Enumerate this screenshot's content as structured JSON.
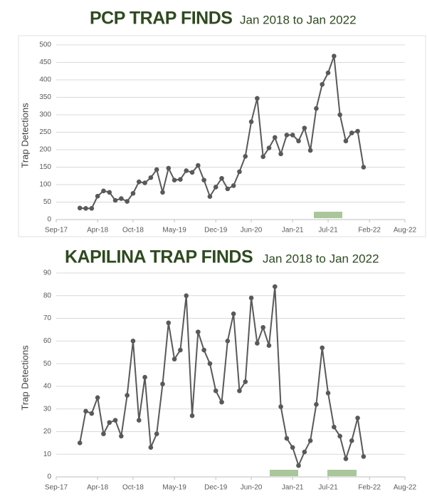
{
  "chart_data": [
    {
      "type": "line",
      "title": "PCP TRAP FINDS",
      "subtitle": "Jan 2018 to Jan 2022",
      "y_label": "Trap Detections",
      "x": [
        "Jan-18",
        "Feb-18",
        "Mar-18",
        "Apr-18",
        "May-18",
        "Jun-18",
        "Jul-18",
        "Aug-18",
        "Sep-18",
        "Oct-18",
        "Nov-18",
        "Dec-18",
        "Jan-19",
        "Feb-19",
        "Mar-19",
        "Apr-19",
        "May-19",
        "Jun-19",
        "Jul-19",
        "Aug-19",
        "Sep-19",
        "Oct-19",
        "Nov-19",
        "Dec-19",
        "Jan-20",
        "Feb-20",
        "Mar-20",
        "Apr-20",
        "May-20",
        "Jun-20",
        "Jul-20",
        "Aug-20",
        "Sep-20",
        "Oct-20",
        "Nov-20",
        "Dec-20",
        "Jan-21",
        "Feb-21",
        "Mar-21",
        "Apr-21",
        "May-21",
        "Jun-21",
        "Jul-21",
        "Aug-21",
        "Sep-21",
        "Oct-21",
        "Nov-21",
        "Dec-21",
        "Jan-22"
      ],
      "series": [
        {
          "name": "Trap Detections",
          "color": "#595959",
          "values": [
            33,
            32,
            32,
            67,
            82,
            78,
            55,
            60,
            52,
            75,
            108,
            105,
            120,
            143,
            78,
            147,
            113,
            115,
            140,
            135,
            155,
            113,
            66,
            93,
            118,
            88,
            97,
            137,
            181,
            280,
            347,
            180,
            205,
            235,
            188,
            242,
            242,
            225,
            262,
            198,
            318,
            387,
            420,
            468,
            300,
            225,
            248,
            253,
            150
          ]
        }
      ],
      "xlim": [
        "Sep-17",
        "Aug-22"
      ],
      "xticks": [
        "Sep-17",
        "Apr-18",
        "Oct-18",
        "May-19",
        "Dec-19",
        "Jun-20",
        "Jan-21",
        "Jul-21",
        "Feb-22",
        "Aug-22"
      ],
      "ylim": [
        0,
        500
      ],
      "yticks": [
        0,
        50,
        100,
        150,
        200,
        250,
        300,
        350,
        400,
        450,
        500
      ],
      "grid": true
    },
    {
      "type": "line",
      "title": "KAPILINA TRAP FINDS",
      "subtitle": "Jan 2018 to Jan 2022",
      "y_label": "Trap Detections",
      "x": [
        "Jan-18",
        "Feb-18",
        "Mar-18",
        "Apr-18",
        "May-18",
        "Jun-18",
        "Jul-18",
        "Aug-18",
        "Sep-18",
        "Oct-18",
        "Nov-18",
        "Dec-18",
        "Jan-19",
        "Feb-19",
        "Mar-19",
        "Apr-19",
        "May-19",
        "Jun-19",
        "Jul-19",
        "Aug-19",
        "Sep-19",
        "Oct-19",
        "Nov-19",
        "Dec-19",
        "Jan-20",
        "Feb-20",
        "Mar-20",
        "Apr-20",
        "May-20",
        "Jun-20",
        "Jul-20",
        "Aug-20",
        "Sep-20",
        "Oct-20",
        "Nov-20",
        "Dec-20",
        "Jan-21",
        "Feb-21",
        "Mar-21",
        "Apr-21",
        "May-21",
        "Jun-21",
        "Jul-21",
        "Aug-21",
        "Sep-21",
        "Oct-21",
        "Nov-21",
        "Dec-21",
        "Jan-22"
      ],
      "series": [
        {
          "name": "Trap Detections",
          "color": "#595959",
          "values": [
            15,
            29,
            28,
            35,
            19,
            24,
            25,
            18,
            36,
            60,
            25,
            44,
            13,
            19,
            41,
            68,
            52,
            56,
            80,
            27,
            64,
            56,
            50,
            38,
            33,
            60,
            72,
            38,
            42,
            79,
            59,
            66,
            58,
            84,
            31,
            17,
            13,
            5,
            11,
            16,
            32,
            57,
            37,
            22,
            18,
            8,
            16,
            26,
            9
          ]
        }
      ],
      "xlim": [
        "Sep-17",
        "Aug-22"
      ],
      "xticks": [
        "Sep-17",
        "Apr-18",
        "Oct-18",
        "May-19",
        "Dec-19",
        "Jun-20",
        "Jan-21",
        "Jul-21",
        "Feb-22",
        "Aug-22"
      ],
      "ylim": [
        0,
        90
      ],
      "yticks": [
        0,
        10,
        20,
        30,
        40,
        50,
        60,
        70,
        80,
        90
      ],
      "grid": true
    }
  ]
}
